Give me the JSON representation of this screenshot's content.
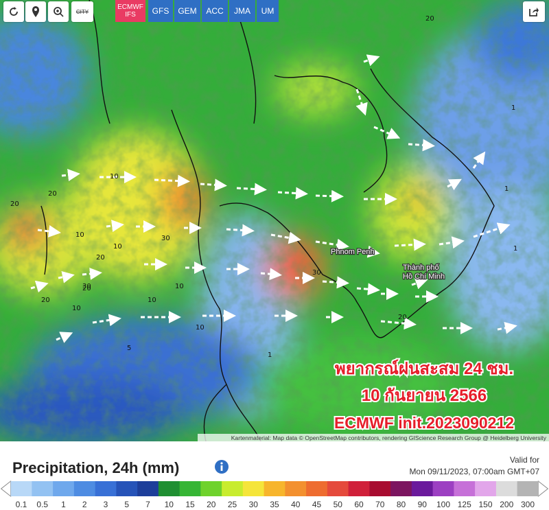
{
  "toolbar": {
    "city": "CITY",
    "models": [
      {
        "label": "ECMWF IFS",
        "active": true
      },
      {
        "label": "GFS",
        "active": false
      },
      {
        "label": "GEM",
        "active": false
      },
      {
        "label": "ACC",
        "active": false
      },
      {
        "label": "JMA",
        "active": false
      },
      {
        "label": "UM",
        "active": false
      }
    ]
  },
  "map": {
    "overlay": [
      "พยากรณ์ฝนสะสม 24 ชม.",
      "10 กันยายน 2566",
      "ECMWF init.2023090212"
    ],
    "places": [
      "Phnom Penh",
      "Thành phố Hồ Chí Minh"
    ],
    "contour_labels": [
      "20",
      "20",
      "10",
      "20",
      "10",
      "30",
      "20",
      "10",
      "30",
      "20",
      "10",
      "1",
      "1",
      "1",
      "10",
      "20",
      "30",
      "10",
      "5",
      "20",
      "1",
      "10"
    ],
    "attribution": "Kartenmaterial: Map data © OpenStreetMap contributors, rendering GIScience Research Group @ Heidelberg University"
  },
  "legend": {
    "title": "Precipitation, 24h (mm)",
    "valid_label": "Valid for",
    "valid_time": "Mon 09/11/2023, 07:00am GMT+07",
    "scale": [
      {
        "label": "0.1",
        "color": "#b8d8f7"
      },
      {
        "label": "0.5",
        "color": "#93c2f2"
      },
      {
        "label": "1",
        "color": "#6fa8ec"
      },
      {
        "label": "2",
        "color": "#4e8ce2"
      },
      {
        "label": "3",
        "color": "#3870d6"
      },
      {
        "label": "5",
        "color": "#2653b8"
      },
      {
        "label": "7",
        "color": "#1d3e9a"
      },
      {
        "label": "10",
        "color": "#1f8f32"
      },
      {
        "label": "15",
        "color": "#36b535"
      },
      {
        "label": "20",
        "color": "#6fd22c"
      },
      {
        "label": "25",
        "color": "#c8ec2e"
      },
      {
        "label": "30",
        "color": "#f5e53a"
      },
      {
        "label": "35",
        "color": "#f7b52c"
      },
      {
        "label": "40",
        "color": "#f3902f"
      },
      {
        "label": "45",
        "color": "#ee6c30"
      },
      {
        "label": "50",
        "color": "#e54a3c"
      },
      {
        "label": "60",
        "color": "#d0203a"
      },
      {
        "label": "70",
        "color": "#a80c30"
      },
      {
        "label": "80",
        "color": "#7c1560"
      },
      {
        "label": "90",
        "color": "#6b1a9c"
      },
      {
        "label": "100",
        "color": "#9c3fc2"
      },
      {
        "label": "125",
        "color": "#c670d8"
      },
      {
        "label": "150",
        "color": "#e2a6ea"
      },
      {
        "label": "200",
        "color": "#dcdcdc"
      },
      {
        "label": "300",
        "color": "#b4b4b4"
      }
    ]
  }
}
